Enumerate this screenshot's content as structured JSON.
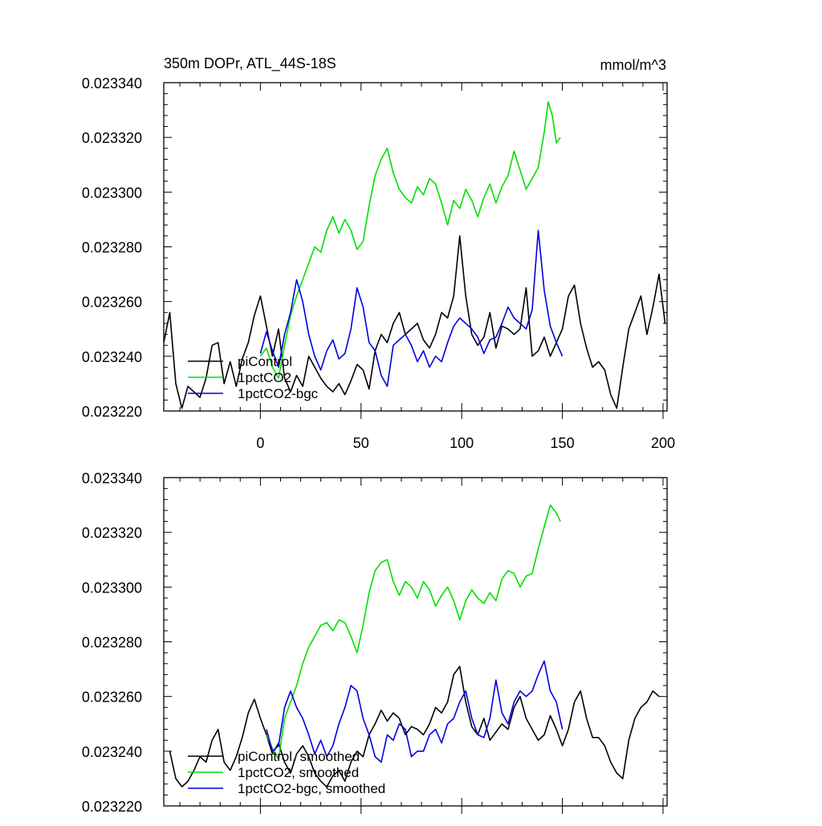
{
  "chart_data": [
    {
      "type": "line",
      "title": "350m DOPr, ATL_44S-18S",
      "units_label": "mmol/m^3",
      "xlim": [
        -48,
        202
      ],
      "ylim": [
        0.02322,
        0.02334
      ],
      "x_ticks": [
        0,
        50,
        100,
        150,
        200
      ],
      "y_ticks": [
        0.02322,
        0.02324,
        0.02326,
        0.02328,
        0.0233,
        0.02332,
        0.02334
      ],
      "y_tick_labels": [
        "0.023220",
        "0.023240",
        "0.023260",
        "0.023280",
        "0.023300",
        "0.023320",
        "0.023340"
      ],
      "grid": false,
      "legend": "bottom-left",
      "series": [
        {
          "name": "piControl",
          "color": "#000000",
          "x": [
            -48,
            -45,
            -42,
            -39,
            -36,
            -33,
            -30,
            -27,
            -24,
            -21,
            -18,
            -15,
            -12,
            -9,
            -6,
            -3,
            0,
            3,
            6,
            9,
            12,
            15,
            18,
            21,
            24,
            27,
            30,
            33,
            36,
            39,
            42,
            45,
            48,
            51,
            54,
            57,
            60,
            63,
            66,
            69,
            72,
            75,
            78,
            81,
            84,
            87,
            90,
            93,
            96,
            99,
            102,
            105,
            108,
            111,
            114,
            117,
            120,
            123,
            126,
            129,
            132,
            135,
            138,
            141,
            144,
            147,
            150,
            153,
            156,
            159,
            162,
            165,
            168,
            171,
            174,
            177,
            180,
            183,
            186,
            189,
            192,
            195,
            198,
            201
          ],
          "y": [
            0.023245,
            0.023256,
            0.02323,
            0.023221,
            0.023229,
            0.023227,
            0.023225,
            0.023232,
            0.023244,
            0.023245,
            0.02323,
            0.023238,
            0.023229,
            0.023239,
            0.023245,
            0.023255,
            0.023262,
            0.023251,
            0.02324,
            0.02325,
            0.023232,
            0.023227,
            0.023233,
            0.023229,
            0.02324,
            0.023236,
            0.023232,
            0.023229,
            0.023227,
            0.02323,
            0.023226,
            0.023231,
            0.023237,
            0.023235,
            0.023228,
            0.023242,
            0.023248,
            0.023245,
            0.023252,
            0.023256,
            0.023248,
            0.02325,
            0.023252,
            0.023246,
            0.023243,
            0.023248,
            0.023256,
            0.023254,
            0.023262,
            0.023284,
            0.023262,
            0.023248,
            0.023244,
            0.023247,
            0.023256,
            0.023243,
            0.023251,
            0.02325,
            0.023248,
            0.02325,
            0.023265,
            0.02324,
            0.023242,
            0.023247,
            0.02324,
            0.023245,
            0.02325,
            0.023262,
            0.023266,
            0.023252,
            0.023243,
            0.023236,
            0.023238,
            0.023235,
            0.023226,
            0.023221,
            0.023236,
            0.02325,
            0.023256,
            0.023262,
            0.023248,
            0.023258,
            0.02327,
            0.023252
          ]
        },
        {
          "name": "1pctCO2",
          "color": "#00e000",
          "x": [
            0,
            3,
            6,
            9,
            12,
            15,
            18,
            21,
            24,
            27,
            30,
            33,
            36,
            39,
            42,
            45,
            48,
            51,
            54,
            57,
            60,
            63,
            66,
            69,
            72,
            75,
            78,
            81,
            84,
            87,
            90,
            93,
            96,
            99,
            102,
            105,
            108,
            111,
            114,
            117,
            120,
            123,
            126,
            129,
            132,
            135,
            138,
            141,
            143,
            145,
            147,
            149
          ],
          "y": [
            0.02324,
            0.023243,
            0.023236,
            0.023232,
            0.023244,
            0.023255,
            0.023262,
            0.023268,
            0.023274,
            0.02328,
            0.023278,
            0.023286,
            0.023291,
            0.023285,
            0.02329,
            0.023286,
            0.023279,
            0.023282,
            0.023295,
            0.023306,
            0.023312,
            0.023316,
            0.023307,
            0.023301,
            0.023298,
            0.023296,
            0.023302,
            0.023299,
            0.023305,
            0.023303,
            0.023296,
            0.023288,
            0.023297,
            0.023294,
            0.023301,
            0.023297,
            0.023291,
            0.023298,
            0.023303,
            0.023296,
            0.023302,
            0.023306,
            0.023315,
            0.023308,
            0.023301,
            0.023305,
            0.023309,
            0.023322,
            0.023333,
            0.023328,
            0.023318,
            0.02332
          ]
        },
        {
          "name": "1pctCO2-bgc",
          "color": "#0000e0",
          "x": [
            0,
            3,
            6,
            9,
            12,
            15,
            18,
            21,
            24,
            27,
            30,
            33,
            36,
            39,
            42,
            45,
            48,
            51,
            54,
            57,
            60,
            63,
            66,
            69,
            72,
            75,
            78,
            81,
            84,
            87,
            90,
            93,
            96,
            99,
            102,
            105,
            108,
            111,
            114,
            117,
            120,
            123,
            126,
            129,
            132,
            135,
            138,
            141,
            144,
            147,
            150
          ],
          "y": [
            0.023241,
            0.023249,
            0.023242,
            0.023236,
            0.023248,
            0.023256,
            0.023268,
            0.02326,
            0.023248,
            0.02324,
            0.023235,
            0.023242,
            0.023246,
            0.023239,
            0.023241,
            0.02325,
            0.023265,
            0.023258,
            0.023245,
            0.023242,
            0.023233,
            0.023229,
            0.023244,
            0.023246,
            0.023248,
            0.023244,
            0.023238,
            0.023242,
            0.023236,
            0.02324,
            0.023238,
            0.023245,
            0.023251,
            0.023254,
            0.023252,
            0.02325,
            0.023247,
            0.023241,
            0.023246,
            0.023247,
            0.023252,
            0.023258,
            0.023254,
            0.023252,
            0.02325,
            0.023257,
            0.023286,
            0.023264,
            0.023251,
            0.023245,
            0.02324
          ]
        }
      ]
    },
    {
      "type": "line",
      "xlim": [
        -48,
        202
      ],
      "ylim": [
        0.02322,
        0.02334
      ],
      "x_ticks": [
        0,
        50,
        100,
        150,
        200
      ],
      "y_ticks": [
        0.02322,
        0.02324,
        0.02326,
        0.02328,
        0.0233,
        0.02332,
        0.02334
      ],
      "y_tick_labels": [
        "0.023220",
        "0.023240",
        "0.023260",
        "0.023280",
        "0.023300",
        "0.023320",
        "0.023340"
      ],
      "grid": false,
      "legend": "bottom-left",
      "series": [
        {
          "name": "piControl, smoothed",
          "color": "#000000",
          "x": [
            -45,
            -42,
            -39,
            -36,
            -33,
            -30,
            -27,
            -24,
            -21,
            -18,
            -15,
            -12,
            -9,
            -6,
            -3,
            0,
            3,
            6,
            9,
            12,
            15,
            18,
            21,
            24,
            27,
            30,
            33,
            36,
            39,
            42,
            45,
            48,
            51,
            54,
            57,
            60,
            63,
            66,
            69,
            72,
            75,
            78,
            81,
            84,
            87,
            90,
            93,
            96,
            99,
            102,
            105,
            108,
            111,
            114,
            117,
            120,
            123,
            126,
            129,
            132,
            135,
            138,
            141,
            144,
            147,
            150,
            153,
            156,
            159,
            162,
            165,
            168,
            171,
            174,
            177,
            180,
            183,
            186,
            189,
            192,
            195,
            198
          ],
          "y": [
            0.02324,
            0.02323,
            0.023227,
            0.023229,
            0.023233,
            0.023238,
            0.023236,
            0.023244,
            0.023248,
            0.023236,
            0.023233,
            0.023238,
            0.023245,
            0.023254,
            0.023259,
            0.023252,
            0.023246,
            0.023239,
            0.023243,
            0.023236,
            0.023232,
            0.023239,
            0.023242,
            0.023238,
            0.023232,
            0.023229,
            0.023227,
            0.023231,
            0.023233,
            0.023229,
            0.023236,
            0.02324,
            0.023238,
            0.023246,
            0.02325,
            0.023255,
            0.023251,
            0.023254,
            0.023252,
            0.023246,
            0.023249,
            0.023248,
            0.023246,
            0.02325,
            0.023256,
            0.023254,
            0.023258,
            0.023268,
            0.023271,
            0.023258,
            0.023249,
            0.023246,
            0.023252,
            0.023244,
            0.023247,
            0.02325,
            0.023248,
            0.023256,
            0.02326,
            0.023252,
            0.023248,
            0.023244,
            0.023246,
            0.023253,
            0.023248,
            0.023242,
            0.023248,
            0.023258,
            0.023262,
            0.023252,
            0.023245,
            0.023245,
            0.023242,
            0.023236,
            0.023232,
            0.02323,
            0.023244,
            0.023252,
            0.023256,
            0.023258,
            0.023262,
            0.02326
          ]
        },
        {
          "name": "1pctCO2, smoothed",
          "color": "#00e000",
          "x": [
            3,
            6,
            9,
            12,
            15,
            18,
            21,
            24,
            27,
            30,
            33,
            36,
            39,
            42,
            45,
            48,
            51,
            54,
            57,
            60,
            63,
            66,
            69,
            72,
            75,
            78,
            81,
            84,
            87,
            90,
            93,
            96,
            99,
            102,
            105,
            108,
            111,
            114,
            117,
            120,
            123,
            126,
            129,
            132,
            135,
            138,
            141,
            144,
            147,
            149
          ],
          "y": [
            0.023246,
            0.023241,
            0.023237,
            0.023252,
            0.023258,
            0.023264,
            0.023272,
            0.023278,
            0.023282,
            0.023286,
            0.023287,
            0.023284,
            0.023288,
            0.023287,
            0.023282,
            0.023276,
            0.023286,
            0.023298,
            0.023306,
            0.023309,
            0.02331,
            0.023302,
            0.023297,
            0.023302,
            0.0233,
            0.023296,
            0.023302,
            0.023299,
            0.023293,
            0.023297,
            0.0233,
            0.023295,
            0.023288,
            0.023295,
            0.023299,
            0.023296,
            0.023294,
            0.023298,
            0.023295,
            0.023303,
            0.023306,
            0.023305,
            0.0233,
            0.023304,
            0.023305,
            0.023314,
            0.023322,
            0.02333,
            0.023327,
            0.023324
          ]
        },
        {
          "name": "1pctCO2-bgc, smoothed",
          "color": "#0000e0",
          "x": [
            3,
            6,
            9,
            12,
            15,
            18,
            21,
            24,
            27,
            30,
            33,
            36,
            39,
            42,
            45,
            48,
            51,
            54,
            57,
            60,
            63,
            66,
            69,
            72,
            75,
            78,
            81,
            84,
            87,
            90,
            93,
            96,
            99,
            102,
            105,
            108,
            111,
            114,
            117,
            120,
            123,
            126,
            129,
            132,
            135,
            138,
            141,
            144,
            147,
            150
          ],
          "y": [
            0.023248,
            0.02324,
            0.023242,
            0.023256,
            0.023262,
            0.023256,
            0.023252,
            0.023246,
            0.023239,
            0.023244,
            0.023238,
            0.023242,
            0.02325,
            0.023256,
            0.023264,
            0.023262,
            0.023252,
            0.023246,
            0.023238,
            0.023236,
            0.023246,
            0.023244,
            0.02325,
            0.023248,
            0.023238,
            0.02324,
            0.02324,
            0.023246,
            0.023248,
            0.023243,
            0.02325,
            0.023252,
            0.023258,
            0.023262,
            0.023252,
            0.023246,
            0.023245,
            0.023252,
            0.023266,
            0.023254,
            0.02325,
            0.023258,
            0.023262,
            0.02326,
            0.023262,
            0.023268,
            0.023273,
            0.023262,
            0.023258,
            0.023248
          ]
        }
      ]
    }
  ]
}
